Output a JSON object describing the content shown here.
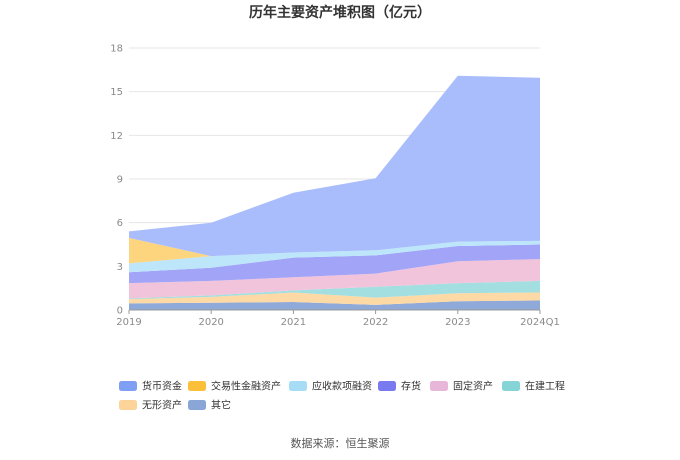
{
  "chart_data": {
    "type": "area",
    "title": "历年主要资产堆积图（亿元）",
    "x": [
      "2019",
      "2020",
      "2021",
      "2022",
      "2023",
      "2024Q1"
    ],
    "ylim": [
      0,
      18
    ],
    "yticks": [
      0,
      3,
      6,
      9,
      12,
      15,
      18
    ],
    "grid": true,
    "legend_placement": "bottom",
    "series": [
      {
        "name": "其它",
        "color": "#8fa9d8",
        "values": [
          0.45,
          0.5,
          0.55,
          0.35,
          0.6,
          0.65
        ]
      },
      {
        "name": "无形资产",
        "color": "#fdd9a6",
        "values": [
          0.3,
          0.4,
          0.65,
          0.5,
          0.55,
          0.55
        ]
      },
      {
        "name": "在建工程",
        "color": "#a3dfe0",
        "values": [
          0.05,
          0.1,
          0.15,
          0.75,
          0.7,
          0.8
        ]
      },
      {
        "name": "固定资产",
        "color": "#f2c4dc",
        "values": [
          1.05,
          1.0,
          0.9,
          0.9,
          1.5,
          1.5
        ]
      },
      {
        "name": "存货",
        "color": "#a1a4f7",
        "values": [
          0.75,
          0.9,
          1.35,
          1.25,
          1.05,
          1.0
        ]
      },
      {
        "name": "应收款项融资",
        "color": "#bde6fa",
        "values": [
          0.6,
          0.8,
          0.35,
          0.35,
          0.3,
          0.25
        ]
      },
      {
        "name": "交易性金融资产",
        "color": "#fdd57e",
        "values": [
          1.75,
          0.0,
          0.0,
          0.0,
          0.0,
          0.0
        ]
      },
      {
        "name": "货币资金",
        "color": "#a9bdfc",
        "values": [
          0.45,
          2.3,
          4.1,
          4.95,
          11.4,
          11.2
        ]
      }
    ],
    "legend": [
      {
        "name": "货币资金",
        "color": "#7f9ff4"
      },
      {
        "name": "交易性金融资产",
        "color": "#fbbf3a"
      },
      {
        "name": "应收款项融资",
        "color": "#a7dcf7"
      },
      {
        "name": "存货",
        "color": "#7a7af0"
      },
      {
        "name": "固定资产",
        "color": "#e8b6d8"
      },
      {
        "name": "在建工程",
        "color": "#86d4d6"
      },
      {
        "name": "无形资产",
        "color": "#fcd49a"
      },
      {
        "name": "其它",
        "color": "#89a6d6"
      }
    ],
    "source": "数据来源：恒生聚源"
  }
}
